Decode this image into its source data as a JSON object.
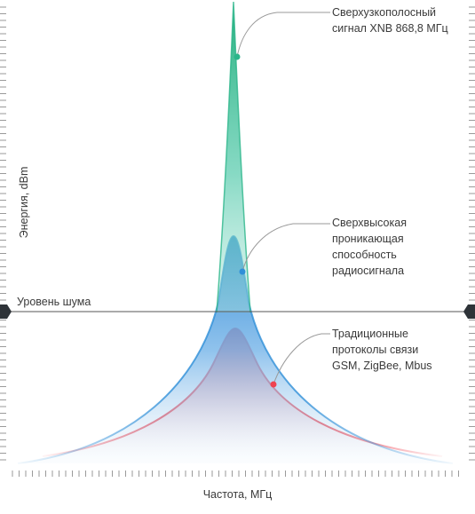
{
  "labels": {
    "xnb_line1": "Сверхузкополосный",
    "xnb_line2": "сигнал XNB 868,8 МГц",
    "pen_line1": "Сверхвысокая",
    "pen_line2": "проникающая",
    "pen_line3": "способность",
    "pen_line4": "радиосигнала",
    "trad_line1": "Традиционные",
    "trad_line2": "протоколы связи",
    "trad_line3": "GSM, ZigBee, Mbus",
    "noise": "Уровень шума",
    "x_axis": "Частота, МГц",
    "y_axis": "Энергия, dBm"
  },
  "colors": {
    "xnb": "#2bb58a",
    "penetration": "#2f8fd8",
    "traditional": "#ef4350",
    "axis": "#8a8a8a",
    "noise_line": "#555555",
    "marker": "#2e3338"
  }
}
